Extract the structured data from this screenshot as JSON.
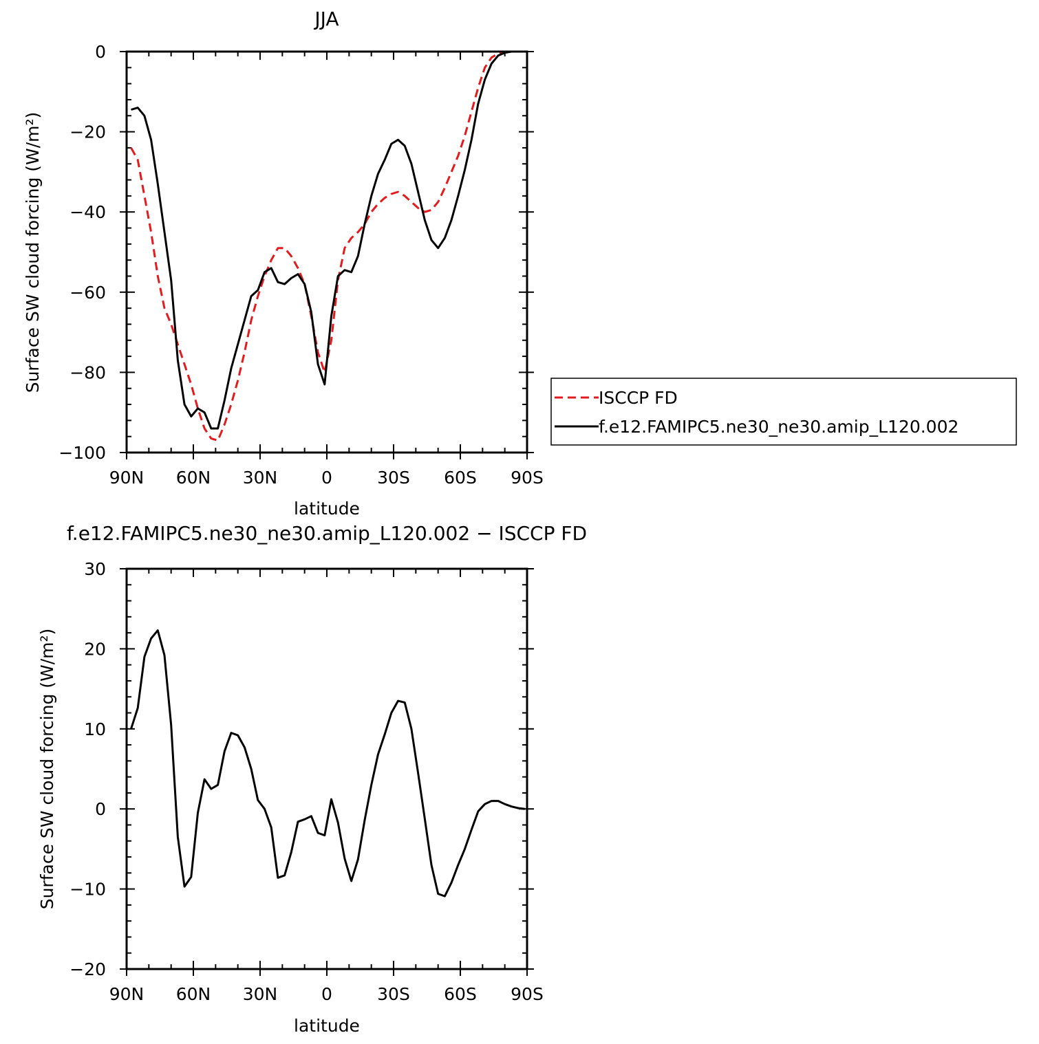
{
  "chart_data": [
    {
      "type": "line",
      "title": "JJA",
      "xlabel": "latitude",
      "ylabel": "Surface SW cloud forcing (W/m²)",
      "xlim": [
        90,
        -90
      ],
      "ylim": [
        -100,
        0
      ],
      "xticks": [
        90,
        60,
        30,
        0,
        -30,
        -60,
        -90
      ],
      "xtick_labels": [
        "90N",
        "60N",
        "30N",
        "0",
        "30S",
        "60S",
        "90S"
      ],
      "yticks": [
        0,
        -20,
        -40,
        -60,
        -80,
        -100
      ],
      "ytick_labels": [
        "0",
        "−20",
        "−40",
        "−60",
        "−80",
        "−100"
      ],
      "legend_position": "right",
      "series": [
        {
          "name": "ISCCP FD",
          "color": "#e41a1c",
          "dash": "dashed",
          "points": [
            [
              88,
              -24
            ],
            [
              85,
              -27
            ],
            [
              82,
              -36
            ],
            [
              79,
              -45
            ],
            [
              76,
              -56
            ],
            [
              73,
              -64
            ],
            [
              70,
              -68
            ],
            [
              67,
              -73
            ],
            [
              64,
              -78
            ],
            [
              61,
              -83
            ],
            [
              58,
              -89
            ],
            [
              55,
              -94
            ],
            [
              52,
              -96.5
            ],
            [
              49,
              -97
            ],
            [
              46,
              -93
            ],
            [
              43,
              -88
            ],
            [
              40,
              -82
            ],
            [
              37,
              -75
            ],
            [
              34,
              -67
            ],
            [
              31,
              -61
            ],
            [
              28,
              -56
            ],
            [
              25,
              -52
            ],
            [
              22,
              -49
            ],
            [
              19,
              -49
            ],
            [
              16,
              -51
            ],
            [
              13,
              -54
            ],
            [
              10,
              -58
            ],
            [
              7,
              -66
            ],
            [
              4,
              -75
            ],
            [
              1,
              -80
            ],
            [
              -2,
              -72
            ],
            [
              -5,
              -57
            ],
            [
              -8,
              -49
            ],
            [
              -11,
              -46.5
            ],
            [
              -14,
              -45
            ],
            [
              -17,
              -43
            ],
            [
              -20,
              -40
            ],
            [
              -23,
              -38
            ],
            [
              -26,
              -36.5
            ],
            [
              -29,
              -35.5
            ],
            [
              -32,
              -35
            ],
            [
              -35,
              -36
            ],
            [
              -38,
              -37.5
            ],
            [
              -41,
              -39
            ],
            [
              -44,
              -40
            ],
            [
              -47,
              -39.5
            ],
            [
              -50,
              -37.5
            ],
            [
              -53,
              -34
            ],
            [
              -56,
              -30
            ],
            [
              -59,
              -26
            ],
            [
              -62,
              -21
            ],
            [
              -65,
              -15
            ],
            [
              -68,
              -9
            ],
            [
              -71,
              -4
            ],
            [
              -74,
              -1.5
            ],
            [
              -77,
              -0.5
            ],
            [
              -80,
              -0.2
            ],
            [
              -83,
              0
            ],
            [
              -86,
              0
            ],
            [
              -88,
              0
            ]
          ]
        },
        {
          "name": "f.e12.FAMIPC5.ne30_ne30.amip_L120.002",
          "color": "#000000",
          "dash": "solid",
          "points": [
            [
              88,
              -14.5
            ],
            [
              85,
              -14
            ],
            [
              82,
              -16
            ],
            [
              79,
              -22
            ],
            [
              76,
              -33
            ],
            [
              73,
              -45
            ],
            [
              70,
              -57
            ],
            [
              67,
              -77
            ],
            [
              64,
              -88
            ],
            [
              61,
              -91
            ],
            [
              58,
              -89
            ],
            [
              55,
              -90
            ],
            [
              52,
              -94
            ],
            [
              49,
              -94
            ],
            [
              46,
              -87
            ],
            [
              43,
              -79
            ],
            [
              40,
              -73
            ],
            [
              37,
              -67
            ],
            [
              34,
              -61
            ],
            [
              31,
              -59.5
            ],
            [
              28,
              -55
            ],
            [
              25,
              -54
            ],
            [
              22,
              -57.5
            ],
            [
              19,
              -58
            ],
            [
              16,
              -56.5
            ],
            [
              13,
              -55.5
            ],
            [
              10,
              -58
            ],
            [
              7,
              -65
            ],
            [
              4,
              -78
            ],
            [
              1,
              -83
            ],
            [
              -2,
              -66
            ],
            [
              -5,
              -56
            ],
            [
              -8,
              -54.5
            ],
            [
              -11,
              -55
            ],
            [
              -14,
              -51
            ],
            [
              -17,
              -43
            ],
            [
              -20,
              -36
            ],
            [
              -23,
              -30.5
            ],
            [
              -26,
              -27
            ],
            [
              -29,
              -23
            ],
            [
              -32,
              -22
            ],
            [
              -35,
              -23.5
            ],
            [
              -38,
              -28
            ],
            [
              -41,
              -35
            ],
            [
              -44,
              -42
            ],
            [
              -47,
              -47
            ],
            [
              -50,
              -49
            ],
            [
              -53,
              -46.5
            ],
            [
              -56,
              -42
            ],
            [
              -59,
              -36
            ],
            [
              -62,
              -29.5
            ],
            [
              -65,
              -22
            ],
            [
              -68,
              -13
            ],
            [
              -71,
              -7
            ],
            [
              -74,
              -3
            ],
            [
              -77,
              -1
            ],
            [
              -80,
              -0.3
            ],
            [
              -83,
              0
            ],
            [
              -86,
              0
            ],
            [
              -88,
              0
            ]
          ]
        }
      ]
    },
    {
      "type": "line",
      "title": "f.e12.FAMIPC5.ne30_ne30.amip_L120.002 − ISCCP FD",
      "xlabel": "latitude",
      "ylabel": "Surface SW cloud forcing (W/m²)",
      "xlim": [
        90,
        -90
      ],
      "ylim": [
        -20,
        30
      ],
      "xticks": [
        90,
        60,
        30,
        0,
        -30,
        -60,
        -90
      ],
      "xtick_labels": [
        "90N",
        "60N",
        "30N",
        "0",
        "30S",
        "60S",
        "90S"
      ],
      "yticks": [
        30,
        20,
        10,
        0,
        -10,
        -20
      ],
      "ytick_labels": [
        "30",
        "20",
        "10",
        "0",
        "−10",
        "−20"
      ],
      "series": [
        {
          "color": "#000000",
          "dash": "solid",
          "points": [
            [
              88,
              10
            ],
            [
              85,
              12.6
            ],
            [
              82,
              19
            ],
            [
              79,
              21.3
            ],
            [
              76,
              22.3
            ],
            [
              73,
              19.2
            ],
            [
              70,
              10.5
            ],
            [
              67,
              -3.5
            ],
            [
              64,
              -9.7
            ],
            [
              61,
              -8.5
            ],
            [
              58,
              -0.5
            ],
            [
              55,
              3.7
            ],
            [
              52,
              2.5
            ],
            [
              49,
              3
            ],
            [
              46,
              7.2
            ],
            [
              43,
              9.5
            ],
            [
              40,
              9.2
            ],
            [
              37,
              7.7
            ],
            [
              34,
              5
            ],
            [
              31,
              1.1
            ],
            [
              28,
              0
            ],
            [
              25,
              -2.3
            ],
            [
              22,
              -8.6
            ],
            [
              19,
              -8.3
            ],
            [
              16,
              -5.4
            ],
            [
              13,
              -1.6
            ],
            [
              10,
              -1.3
            ],
            [
              7,
              -0.9
            ],
            [
              4,
              -3
            ],
            [
              1,
              -3.3
            ],
            [
              -2,
              1.2
            ],
            [
              -5,
              -1.7
            ],
            [
              -8,
              -6.2
            ],
            [
              -11,
              -9
            ],
            [
              -14,
              -6.3
            ],
            [
              -17,
              -1.4
            ],
            [
              -20,
              3
            ],
            [
              -23,
              6.8
            ],
            [
              -26,
              9.3
            ],
            [
              -29,
              12
            ],
            [
              -32,
              13.5
            ],
            [
              -35,
              13.3
            ],
            [
              -38,
              10
            ],
            [
              -41,
              4.5
            ],
            [
              -44,
              -1.2
            ],
            [
              -47,
              -7
            ],
            [
              -50,
              -10.6
            ],
            [
              -53,
              -10.9
            ],
            [
              -56,
              -9.2
            ],
            [
              -59,
              -7
            ],
            [
              -62,
              -5
            ],
            [
              -65,
              -2.6
            ],
            [
              -68,
              -0.3
            ],
            [
              -71,
              0.6
            ],
            [
              -74,
              1
            ],
            [
              -77,
              1
            ],
            [
              -80,
              0.6
            ],
            [
              -83,
              0.3
            ],
            [
              -86,
              0.1
            ],
            [
              -89,
              0
            ]
          ]
        }
      ]
    }
  ]
}
